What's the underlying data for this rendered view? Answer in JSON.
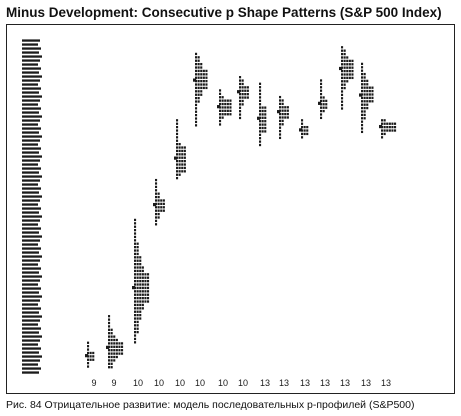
{
  "title": "Minus Development: Consecutive p Shape Patterns (S&P 500 Index)",
  "caption": "Рис. 84 Отрицательное развитие: модель последовательных р-профилей (S&P500)",
  "colors": {
    "ink": "#1a1a1a",
    "background": "#ffffff"
  },
  "chart_data": {
    "type": "market-profile",
    "title": "Minus Development: Consecutive p Shape Patterns (S&P 500 Index)",
    "xlabel": "",
    "ylabel": "",
    "grid": false,
    "legend": "none",
    "ylim": [
      0,
      100
    ],
    "price_scale_labels_readable": false,
    "note_on_units": "price levels are relative (0 = bottom of chart, 100 = top); the price-scale tick labels are not legible",
    "profiles": [
      {
        "label": "9",
        "low": 1,
        "high": 9,
        "value_low": 3,
        "value_high": 6,
        "max_width": 3
      },
      {
        "label": "9",
        "low": 1,
        "high": 17,
        "value_low": 5,
        "value_high": 9,
        "max_width": 6
      },
      {
        "label": "10",
        "low": 8,
        "high": 46,
        "value_low": 20,
        "value_high": 30,
        "max_width": 6
      },
      {
        "label": "10",
        "low": 44,
        "high": 58,
        "value_low": 48,
        "value_high": 52,
        "max_width": 4
      },
      {
        "label": "10",
        "low": 58,
        "high": 76,
        "value_low": 60,
        "value_high": 68,
        "max_width": 4
      },
      {
        "label": "10",
        "low": 73,
        "high": 96,
        "value_low": 84,
        "value_high": 91,
        "max_width": 5
      },
      {
        "label": "10",
        "low": 74,
        "high": 85,
        "value_low": 77,
        "value_high": 82,
        "max_width": 5
      },
      {
        "label": "10",
        "low": 76,
        "high": 89,
        "value_low": 82,
        "value_high": 86,
        "max_width": 4
      },
      {
        "label": "13",
        "low": 68,
        "high": 87,
        "value_low": 72,
        "value_high": 80,
        "max_width": 3
      },
      {
        "label": "13",
        "low": 70,
        "high": 83,
        "value_low": 76,
        "value_high": 80,
        "max_width": 4
      },
      {
        "label": "13",
        "low": 70,
        "high": 76,
        "value_low": 71,
        "value_high": 74,
        "max_width": 3
      },
      {
        "label": "13",
        "low": 76,
        "high": 88,
        "value_low": 79,
        "value_high": 82,
        "max_width": 3
      },
      {
        "label": "13",
        "low": 79,
        "high": 98,
        "value_low": 88,
        "value_high": 94,
        "max_width": 5
      },
      {
        "label": "13",
        "low": 71,
        "high": 93,
        "value_low": 80,
        "value_high": 86,
        "max_width": 5
      },
      {
        "label": "13",
        "low": 70,
        "high": 76,
        "value_low": 72,
        "value_high": 75,
        "max_width": 6
      }
    ]
  }
}
